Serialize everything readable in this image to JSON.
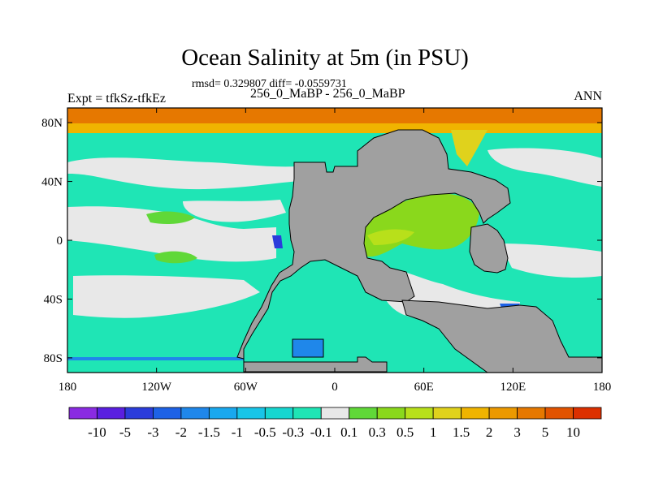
{
  "title": "Ocean Salinity at 5m (in PSU)",
  "stats_line": "rmsd= 0.329807 diff= -0.0559731",
  "cases_line": "256_0_MaBP - 256_0_MaBP",
  "experiment_label": "Expt = tfkSz-tfkEz",
  "period_label": "ANN",
  "map": {
    "lon_range": [
      -180,
      180
    ],
    "lat_range": [
      -90,
      90
    ],
    "land_color": "#a0a0a0",
    "ocean_background_color": "#1fe5b5",
    "x_ticks": [
      {
        "value": -180,
        "label": "180"
      },
      {
        "value": -120,
        "label": "120W"
      },
      {
        "value": -60,
        "label": "60W"
      },
      {
        "value": 0,
        "label": "0"
      },
      {
        "value": 60,
        "label": "60E"
      },
      {
        "value": 120,
        "label": "120E"
      },
      {
        "value": 180,
        "label": "180"
      }
    ],
    "y_ticks": [
      {
        "value": 80,
        "label": "80N"
      },
      {
        "value": 40,
        "label": "40N"
      },
      {
        "value": 0,
        "label": "0"
      },
      {
        "value": -40,
        "label": "40S"
      },
      {
        "value": -80,
        "label": "80S"
      }
    ]
  },
  "colorbar": {
    "colors": [
      "#8a2be2",
      "#5a1fe0",
      "#2b3cdb",
      "#1e62e6",
      "#1f87ea",
      "#19a8ee",
      "#18c5e8",
      "#16d6d0",
      "#1fe5b5",
      "#e8e8e8",
      "#60d838",
      "#8ad81c",
      "#b8e01a",
      "#e0d21c",
      "#f0b400",
      "#ec9900",
      "#e67800",
      "#e25300",
      "#dc3000"
    ],
    "labels": [
      "-10",
      "-5",
      "-3",
      "-2",
      "-1.5",
      "-1",
      "-0.5",
      "-0.3",
      "-0.1",
      "0.1",
      "0.3",
      "0.5",
      "1",
      "1.5",
      "2",
      "3",
      "5",
      "10"
    ]
  }
}
